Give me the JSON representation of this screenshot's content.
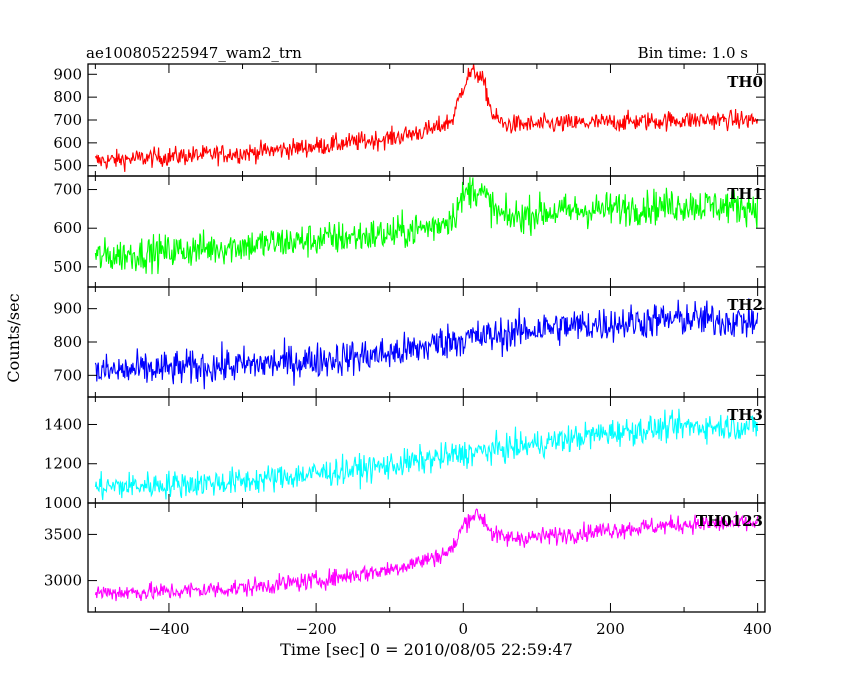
{
  "header": {
    "title": "ae100805225947_wam2_trn",
    "bin_time": "Bin time: 1.0 s"
  },
  "chart_data": {
    "type": "line",
    "title": "ae100805225947_wam2_trn",
    "subtitle": "Bin time: 1.0 s",
    "xlabel": "Time [sec] 0 = 2010/08/05 22:59:47",
    "ylabel": "Counts/sec",
    "xlim": [
      -510,
      410
    ],
    "x_ticks": [
      -400,
      -200,
      0,
      200,
      400
    ],
    "x_tick_labels": [
      "−400",
      "−200",
      "0",
      "200",
      "400"
    ],
    "grid": false,
    "panels": [
      {
        "name": "TH0",
        "color": "#ff0000",
        "ylim": [
          455,
          945
        ],
        "y_ticks": [
          500,
          600,
          700,
          800,
          900
        ],
        "x": [
          -500,
          -400,
          -300,
          -200,
          -100,
          -40,
          -15,
          0,
          8,
          18,
          28,
          40,
          55,
          100,
          200,
          300,
          400
        ],
        "y": [
          520,
          540,
          555,
          585,
          620,
          660,
          700,
          850,
          900,
          910,
          860,
          720,
          680,
          680,
          690,
          700,
          700
        ],
        "noise_amplitude": 30
      },
      {
        "name": "TH1",
        "color": "#00ff00",
        "ylim": [
          448,
          735
        ],
        "y_ticks": [
          500,
          600,
          700
        ],
        "x": [
          -500,
          -400,
          -300,
          -200,
          -100,
          -40,
          -15,
          0,
          10,
          20,
          30,
          45,
          60,
          100,
          200,
          300,
          400
        ],
        "y": [
          525,
          540,
          555,
          570,
          585,
          605,
          630,
          680,
          700,
          700,
          680,
          640,
          625,
          640,
          650,
          660,
          655
        ],
        "noise_amplitude": 32
      },
      {
        "name": "TH2",
        "color": "#0000ff",
        "ylim": [
          635,
          965
        ],
        "y_ticks": [
          700,
          800,
          900
        ],
        "x": [
          -500,
          -400,
          -300,
          -200,
          -100,
          -60,
          -30,
          0,
          50,
          100,
          200,
          300,
          400
        ],
        "y": [
          710,
          720,
          730,
          745,
          765,
          780,
          800,
          810,
          820,
          840,
          855,
          870,
          860
        ],
        "noise_amplitude": 38
      },
      {
        "name": "TH3",
        "color": "#00ffff",
        "ylim": [
          1000,
          1540
        ],
        "y_ticks": [
          1000,
          1200,
          1400
        ],
        "x": [
          -500,
          -400,
          -300,
          -200,
          -100,
          0,
          100,
          200,
          300,
          400
        ],
        "y": [
          1080,
          1095,
          1110,
          1150,
          1190,
          1250,
          1300,
          1360,
          1390,
          1390
        ],
        "noise_amplitude": 50
      },
      {
        "name": "TH0123",
        "color": "#ff00ff",
        "ylim": [
          2660,
          3840
        ],
        "y_ticks": [
          3000,
          3500
        ],
        "x": [
          -500,
          -400,
          -300,
          -200,
          -100,
          -40,
          -15,
          0,
          10,
          20,
          30,
          40,
          55,
          100,
          200,
          300,
          400
        ],
        "y": [
          2870,
          2880,
          2920,
          3000,
          3120,
          3250,
          3330,
          3600,
          3700,
          3720,
          3640,
          3500,
          3460,
          3470,
          3550,
          3610,
          3620
        ],
        "noise_amplitude": 70
      }
    ]
  }
}
